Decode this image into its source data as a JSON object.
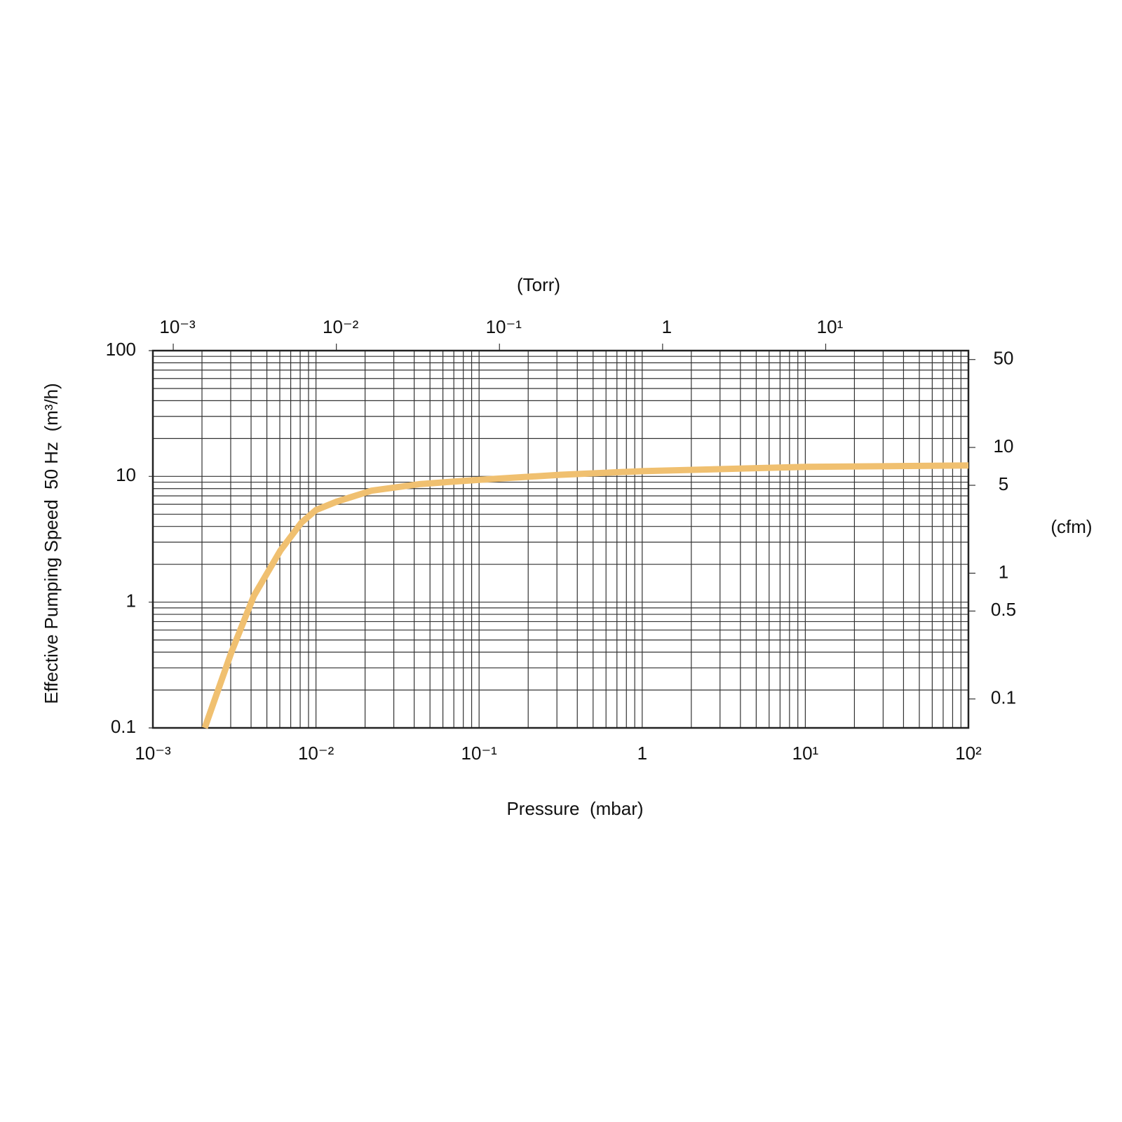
{
  "chart_data": {
    "type": "line",
    "xlabel": "Pressure  (mbar)",
    "ylabel": "Effective Pumping Speed  50 Hz  (m³/h)",
    "x2label": "(Torr)",
    "y2label": "(cfm)",
    "log_x": true,
    "log_y": true,
    "grid": true,
    "xlim": [
      0.001,
      100
    ],
    "xticks": [
      {
        "value": 0.001,
        "label": "10⁻³"
      },
      {
        "value": 0.01,
        "label": "10⁻²"
      },
      {
        "value": 0.1,
        "label": "10⁻¹"
      },
      1,
      {
        "value": 10,
        "label": "10¹"
      },
      {
        "value": 100,
        "label": "10²"
      }
    ],
    "xticks_minor": [
      0.002,
      0.003,
      0.004,
      0.005,
      0.006,
      0.007,
      0.008,
      0.009,
      0.02,
      0.03,
      0.04,
      0.05,
      0.06,
      0.07,
      0.08,
      0.09,
      0.2,
      0.3,
      0.4,
      0.5,
      0.6,
      0.7,
      0.8,
      0.9,
      2,
      3,
      4,
      5,
      6,
      7,
      8,
      9,
      20,
      30,
      40,
      50,
      60,
      70,
      80,
      90
    ],
    "ylim": [
      0.1,
      100
    ],
    "yticks": [
      0.1,
      1,
      10,
      100
    ],
    "yticks_minor": [
      0.2,
      0.3,
      0.4,
      0.5,
      0.6,
      0.7,
      0.8,
      0.9,
      2,
      3,
      4,
      5,
      6,
      7,
      8,
      9,
      20,
      30,
      40,
      50,
      60,
      70,
      80,
      90
    ],
    "x2lim": [
      0.00075,
      75
    ],
    "x2ticks": [
      {
        "value": 0.001,
        "label": "10⁻³"
      },
      {
        "value": 0.01,
        "label": "10⁻²"
      },
      {
        "value": 0.1,
        "label": "10⁻¹"
      },
      1,
      {
        "value": 10,
        "label": "10¹"
      }
    ],
    "y2lim": [
      0.05886,
      58.86
    ],
    "y2ticks": [
      0.1,
      0.5,
      1,
      5,
      10,
      50
    ],
    "x": [
      0.00208,
      0.00303,
      0.00416,
      0.00605,
      0.00815,
      0.01,
      0.0134,
      0.0219,
      0.0438,
      0.1,
      0.318,
      1,
      10,
      100
    ],
    "series": [
      {
        "color": "#f0c070",
        "values": [
          0.1,
          0.4,
          1.12,
          2.57,
          4.3,
          5.4,
          6.3,
          7.7,
          8.7,
          9.4,
          10.3,
          11.0,
          11.9,
          12.2
        ]
      }
    ]
  }
}
